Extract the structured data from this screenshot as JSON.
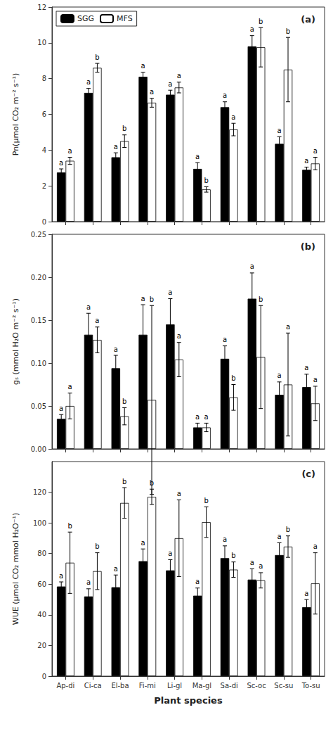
{
  "chart_data": [
    {
      "type": "bar",
      "title": "(a)",
      "categories": [
        "Ap-di",
        "Ci-ca",
        "El-ba",
        "Fi-mi",
        "Li-gl",
        "Ma-gl",
        "Sa-di",
        "Sc-oc",
        "Sc-su",
        "To-su"
      ],
      "series": [
        {
          "name": "SGG",
          "color": "black",
          "values": [
            2.75,
            7.2,
            3.6,
            8.1,
            7.1,
            2.95,
            6.4,
            9.8,
            4.35,
            2.9
          ],
          "errors": [
            0.2,
            0.25,
            0.25,
            0.25,
            0.25,
            0.35,
            0.3,
            0.6,
            0.4,
            0.15
          ],
          "labels": [
            "a",
            "a",
            "a",
            "a",
            "a",
            "a",
            "a",
            "a",
            "a",
            "a"
          ]
        },
        {
          "name": "MFS",
          "color": "white",
          "values": [
            3.4,
            8.6,
            4.5,
            6.65,
            7.5,
            1.8,
            5.15,
            9.75,
            8.5,
            3.25
          ],
          "errors": [
            0.2,
            0.25,
            0.35,
            0.25,
            0.3,
            0.15,
            0.35,
            1.1,
            1.8,
            0.35
          ],
          "labels": [
            "a",
            "b",
            "b",
            "a",
            "a",
            "b",
            "a",
            "b",
            "b",
            "a"
          ]
        }
      ],
      "ylabel": "Pn(μmol CO₂ m⁻² s⁻¹)",
      "ylim": [
        0,
        12
      ],
      "yticks": [
        0,
        2,
        4,
        6,
        8,
        10,
        12
      ],
      "grid": false,
      "legend": "upper left",
      "tick_labels": "y"
    },
    {
      "type": "bar",
      "title": "(b)",
      "categories": [
        "Ap-di",
        "Ci-ca",
        "El-ba",
        "Fi-mi",
        "Li-gl",
        "Ma-gl",
        "Sa-di",
        "Sc-oc",
        "Sc-su",
        "To-su"
      ],
      "series": [
        {
          "name": "SGG",
          "color": "black",
          "values": [
            0.035,
            0.133,
            0.094,
            0.133,
            0.145,
            0.025,
            0.105,
            0.175,
            0.063,
            0.072
          ],
          "errors": [
            0.005,
            0.025,
            0.015,
            0.035,
            0.03,
            0.005,
            0.015,
            0.03,
            0.015,
            0.015
          ],
          "labels": [
            "a",
            "a",
            "a",
            "a",
            "a",
            "a",
            "a",
            "a",
            "a",
            "a"
          ]
        },
        {
          "name": "MFS",
          "color": "white",
          "values": [
            0.05,
            0.127,
            0.038,
            0.057,
            0.104,
            0.025,
            0.06,
            0.107,
            0.075,
            0.053
          ],
          "errors": [
            0.015,
            0.015,
            0.01,
            0.11,
            0.02,
            0.005,
            0.015,
            0.06,
            0.06,
            0.02
          ],
          "labels": [
            "a",
            "a",
            "b",
            "b",
            "a",
            "a",
            "b",
            "b",
            "a",
            "a"
          ]
        }
      ],
      "ylabel": "gₛ (mmol H₂O m⁻² s⁻¹)",
      "ylim": [
        0,
        0.25
      ],
      "yticks": [
        {
          "value": 0,
          "label": "0.00"
        },
        0.05,
        {
          "value": 0.1,
          "label": "0.10"
        },
        0.15,
        {
          "value": 0.2,
          "label": "0.20"
        },
        0.25
      ],
      "grid": false,
      "tick_labels": "y"
    },
    {
      "type": "bar",
      "title": "(c)",
      "categories": [
        "Ap-di",
        "Ci-ca",
        "El-ba",
        "Fi-mi",
        "Li-gl",
        "Ma-gl",
        "Sa-di",
        "Sc-oc",
        "Sc-su",
        "To-su"
      ],
      "series": [
        {
          "name": "SGG",
          "color": "black",
          "values": [
            58.5,
            52.0,
            58.0,
            75.0,
            69.0,
            52.5,
            77.0,
            63.0,
            79.0,
            45.0
          ],
          "errors": [
            3.0,
            5.0,
            8.0,
            8.0,
            7.0,
            5.0,
            8.0,
            7.0,
            8.0,
            5.0
          ],
          "labels": [
            "a",
            "a",
            "a",
            "a",
            "a",
            "a",
            "a",
            "a",
            "a",
            "a"
          ]
        },
        {
          "name": "MFS",
          "color": "white",
          "values": [
            74.0,
            68.5,
            113.0,
            117.0,
            90.0,
            100.5,
            69.5,
            62.5,
            84.5,
            60.5
          ],
          "errors": [
            20.0,
            12.0,
            10.0,
            5.0,
            25.0,
            10.0,
            5.0,
            5.0,
            7.0,
            20.0
          ],
          "labels": [
            "b",
            "b",
            "b",
            "b",
            "a",
            "b",
            "b",
            "a",
            "b",
            "a"
          ]
        }
      ],
      "ylabel": "WUE (μmol CO₂ mmol H₂O⁻¹)",
      "xlabel": "Plant species",
      "ylim": [
        0,
        140
      ],
      "yticks": [
        0,
        20,
        40,
        60,
        80,
        100,
        120
      ],
      "grid": false
    }
  ]
}
